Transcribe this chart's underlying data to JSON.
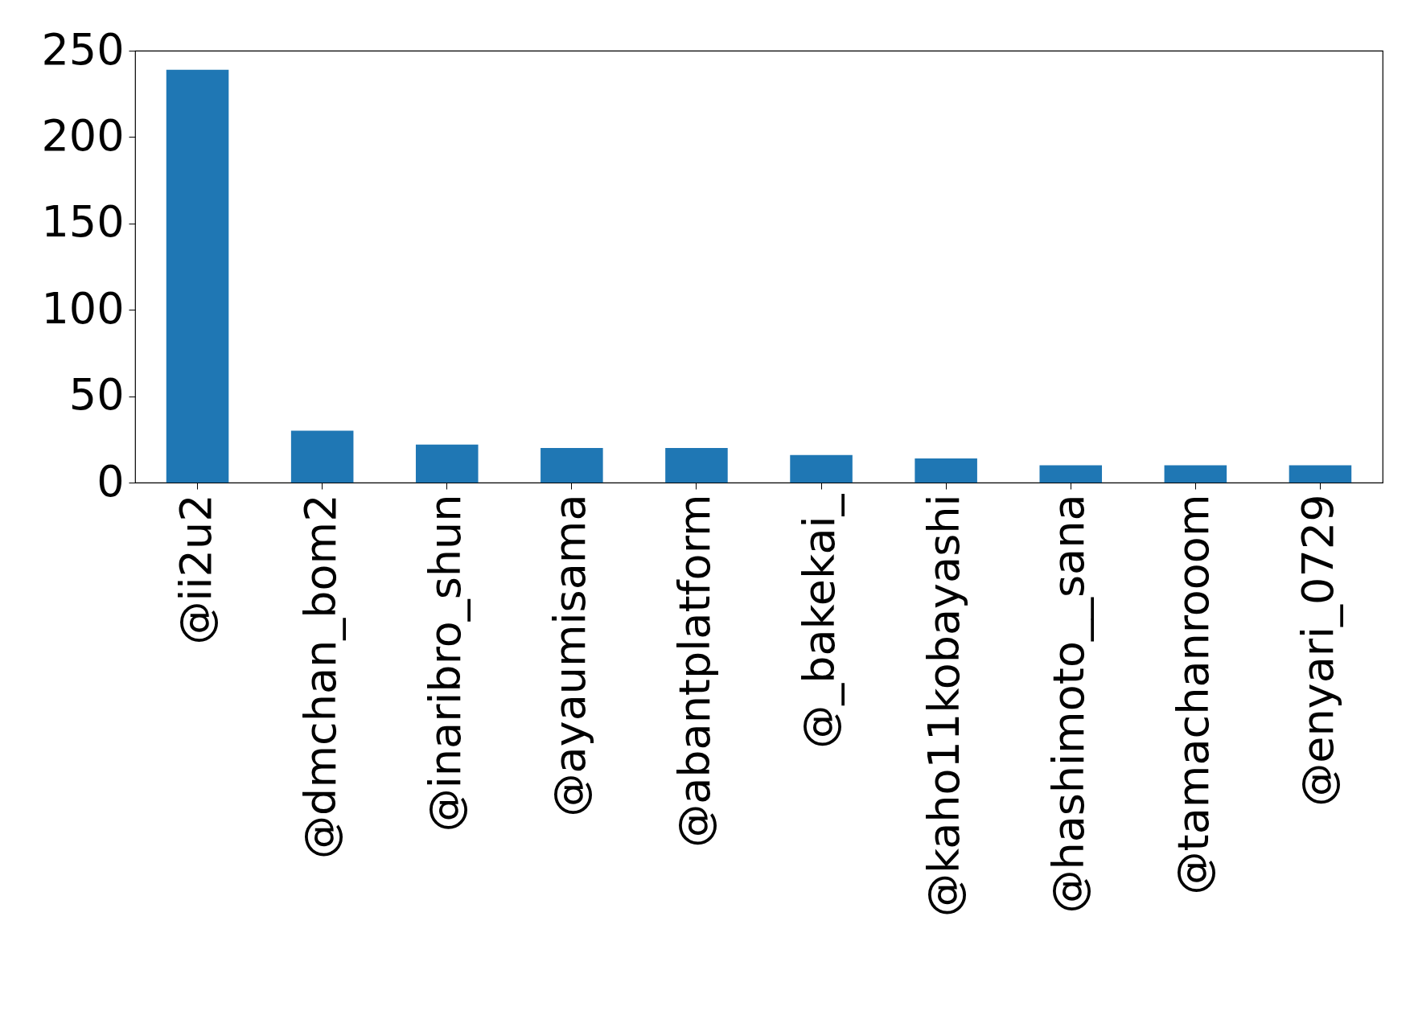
{
  "chart_data": {
    "type": "bar",
    "categories": [
      "@ii2u2",
      "@dmchan_bom2",
      "@inaribro_shun",
      "@ayaumisama",
      "@abantplatform",
      "@_bakekai_",
      "@kaho11kobayashi",
      "@hashimoto__sana",
      "@tamachanrooom",
      "@enyari_0729"
    ],
    "values": [
      239,
      30,
      22,
      20,
      20,
      16,
      14,
      10,
      10,
      10
    ],
    "color": "#1f77b4",
    "ylim": [
      0,
      250
    ],
    "yticks": [
      0,
      50,
      100,
      150,
      200,
      250
    ],
    "grid": false
  }
}
